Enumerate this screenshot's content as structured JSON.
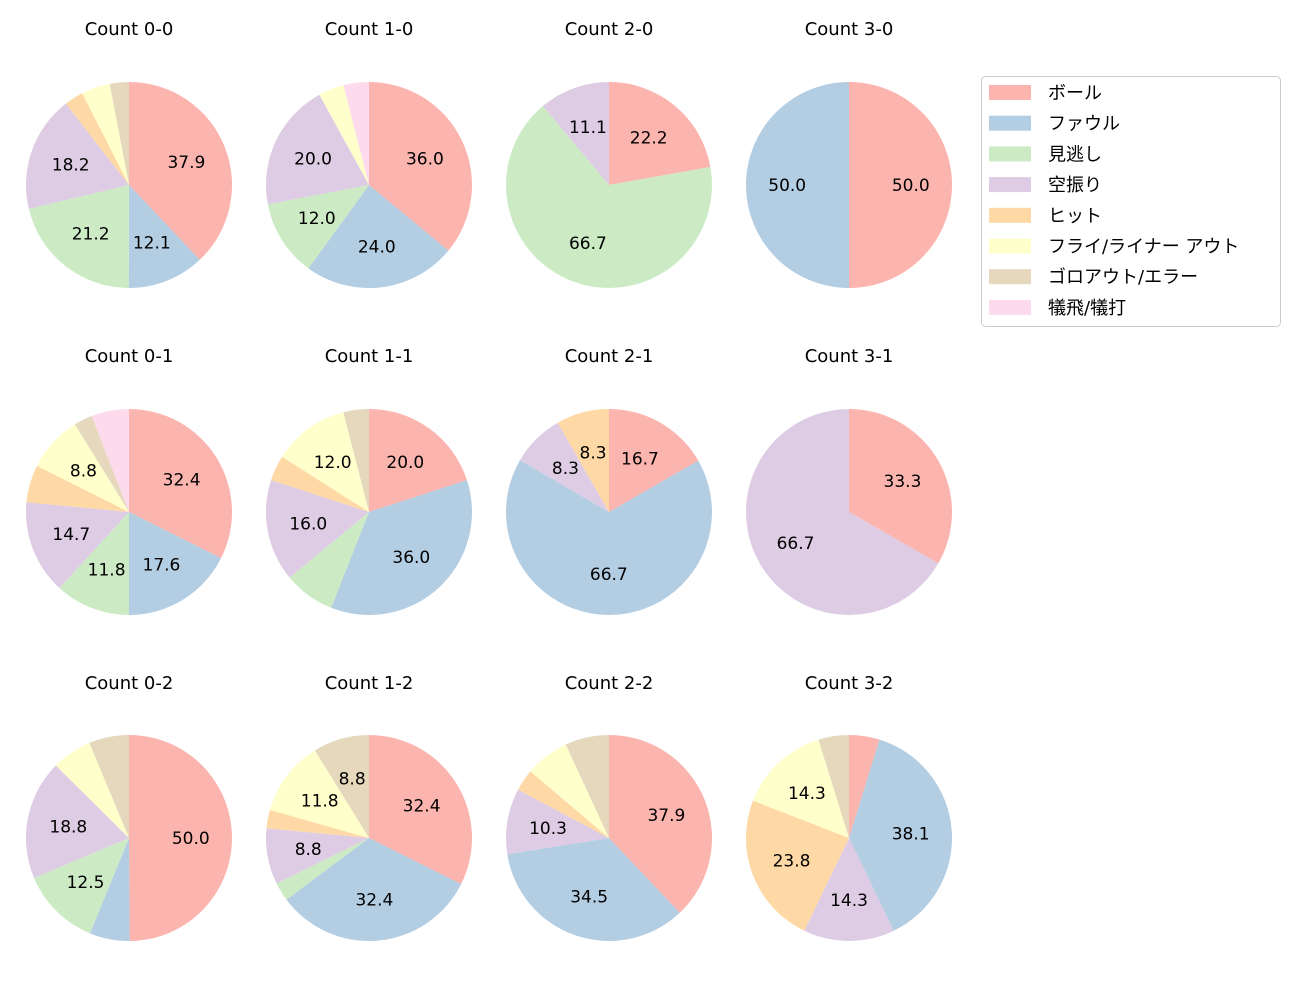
{
  "chart_data": {
    "type": "pie",
    "colors": [
      "#fbb4ae",
      "#b3cde3",
      "#ccebc5",
      "#decbe4",
      "#fed9a6",
      "#ffffcc",
      "#e5d8bd",
      "#fddaec"
    ],
    "legend": {
      "placement": "top-right",
      "entries": [
        "ボール",
        "ファウル",
        "見逃し",
        "空振り",
        "ヒット",
        "フライ/ライナー アウト",
        "ゴロアウト/エラー",
        "犠飛/犠打"
      ]
    },
    "start_angle_deg": 90,
    "direction": "clockwise",
    "pies": [
      {
        "title": "Count 0-0",
        "values": [
          37.9,
          12.1,
          21.2,
          18.2,
          3.0,
          4.5,
          3.0,
          0
        ]
      },
      {
        "title": "Count 1-0",
        "values": [
          36.0,
          24.0,
          12.0,
          20.0,
          0,
          4.0,
          0,
          4.0
        ]
      },
      {
        "title": "Count 2-0",
        "values": [
          22.2,
          0,
          66.7,
          11.1,
          0,
          0,
          0,
          0
        ]
      },
      {
        "title": "Count 3-0",
        "values": [
          50.0,
          50.0,
          0,
          0,
          0,
          0,
          0,
          0
        ]
      },
      {
        "title": "Count 0-1",
        "values": [
          32.4,
          17.6,
          11.8,
          14.7,
          5.9,
          8.8,
          2.9,
          5.9
        ]
      },
      {
        "title": "Count 1-1",
        "values": [
          20.0,
          36.0,
          8.0,
          16.0,
          4.0,
          12.0,
          4.0,
          0
        ]
      },
      {
        "title": "Count 2-1",
        "values": [
          16.7,
          66.7,
          0,
          8.3,
          8.3,
          0,
          0,
          0
        ]
      },
      {
        "title": "Count 3-1",
        "values": [
          33.3,
          0,
          0,
          66.7,
          0,
          0,
          0,
          0
        ]
      },
      {
        "title": "Count 0-2",
        "values": [
          50.0,
          6.3,
          12.5,
          18.8,
          0,
          6.3,
          6.3,
          0
        ]
      },
      {
        "title": "Count 1-2",
        "values": [
          32.4,
          32.4,
          2.9,
          8.8,
          2.9,
          11.8,
          8.8,
          0
        ]
      },
      {
        "title": "Count 2-2",
        "values": [
          37.9,
          34.5,
          0,
          10.3,
          3.4,
          6.9,
          6.9,
          0
        ]
      },
      {
        "title": "Count 3-2",
        "values": [
          4.8,
          38.1,
          0,
          14.3,
          23.8,
          14.3,
          4.8,
          0
        ]
      }
    ]
  }
}
